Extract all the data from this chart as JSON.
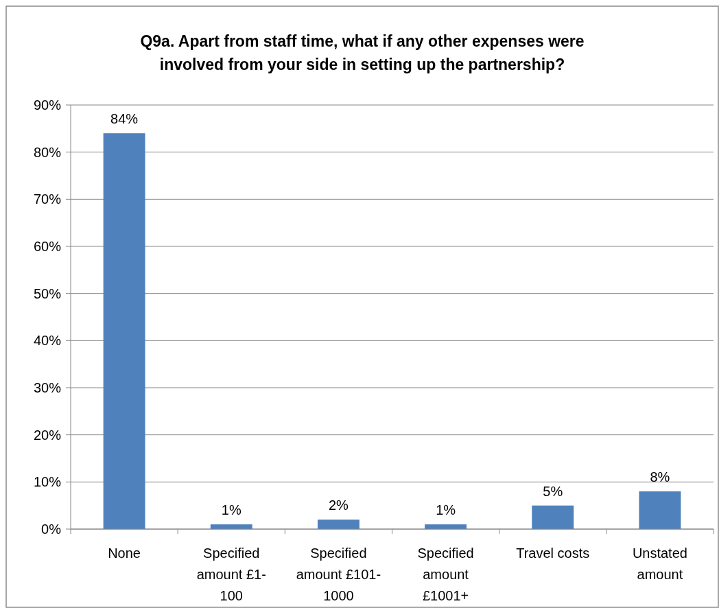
{
  "chart_data": {
    "type": "bar",
    "title": "Q9a. Apart from staff time, what if any other expenses were involved from your side in setting up the partnership?",
    "categories": [
      "None",
      "Specified amount £1-100",
      "Specified amount £101-1000",
      "Specified amount £1001+",
      "Travel costs",
      "Unstated amount"
    ],
    "values": [
      84,
      1,
      2,
      1,
      5,
      8
    ],
    "value_labels": [
      "84%",
      "1%",
      "2%",
      "1%",
      "5%",
      "8%"
    ],
    "color": "#4f81bd",
    "ylim": [
      0,
      90
    ],
    "yticks": [
      {
        "value": 0,
        "label": "0%"
      },
      {
        "value": 10,
        "label": "10%"
      },
      {
        "value": 20,
        "label": "20%"
      },
      {
        "value": 30,
        "label": "30%"
      },
      {
        "value": 40,
        "label": "40%"
      },
      {
        "value": 50,
        "label": "50%"
      },
      {
        "value": 60,
        "label": "60%"
      },
      {
        "value": 70,
        "label": "70%"
      },
      {
        "value": 80,
        "label": "80%"
      },
      {
        "value": 90,
        "label": "90%"
      }
    ],
    "grid": "y"
  }
}
